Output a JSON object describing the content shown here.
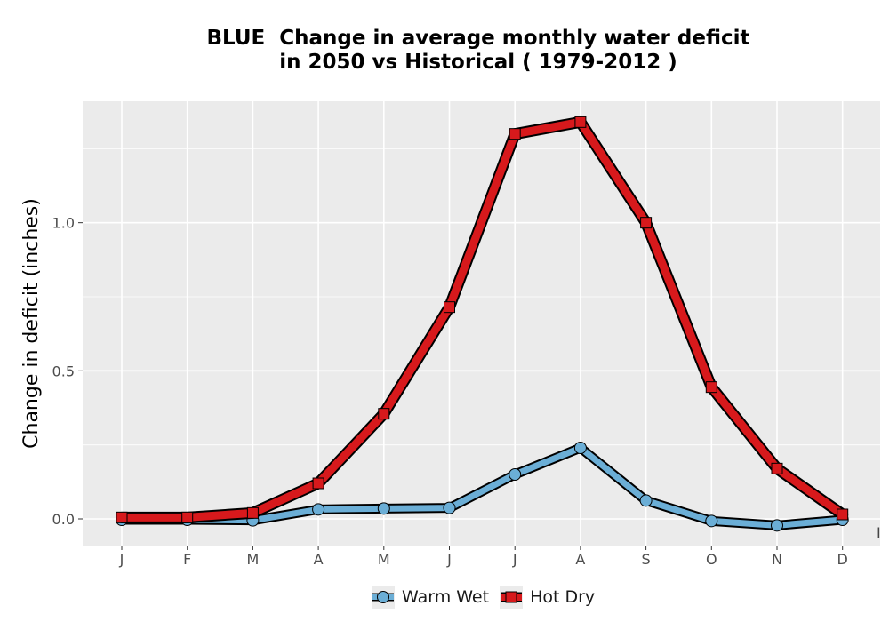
{
  "title_line1": "BLUE  Change in average monthly water deficit",
  "title_line2": "in 2050 vs Historical ( 1979-2012 )",
  "overflow_glyph": "I",
  "chart_data": {
    "type": "line",
    "title": "BLUE  Change in average monthly water deficit in 2050 vs Historical ( 1979-2012 )",
    "xlabel": "",
    "ylabel": "Change in deficit (inches)",
    "categories": [
      "J",
      "F",
      "M",
      "A",
      "M",
      "J",
      "J",
      "A",
      "S",
      "O",
      "N",
      "D"
    ],
    "ylim": [
      -0.09,
      1.41
    ],
    "yticks": [
      0.0,
      0.5,
      1.0
    ],
    "ytick_labels": [
      "0.0",
      "0.5",
      "1.0"
    ],
    "grid": true,
    "legend_position": "bottom",
    "series": [
      {
        "name": "Warm Wet",
        "values": [
          -0.003,
          -0.003,
          -0.005,
          0.032,
          0.035,
          0.037,
          0.15,
          0.24,
          0.062,
          -0.007,
          -0.022,
          -0.003
        ],
        "color": "#6baed6",
        "marker": "circle"
      },
      {
        "name": "Hot Dry",
        "values": [
          0.005,
          0.005,
          0.02,
          0.12,
          0.355,
          0.715,
          1.3,
          1.34,
          1.0,
          0.445,
          0.17,
          0.015
        ],
        "color": "#d7191c",
        "marker": "square"
      }
    ]
  }
}
